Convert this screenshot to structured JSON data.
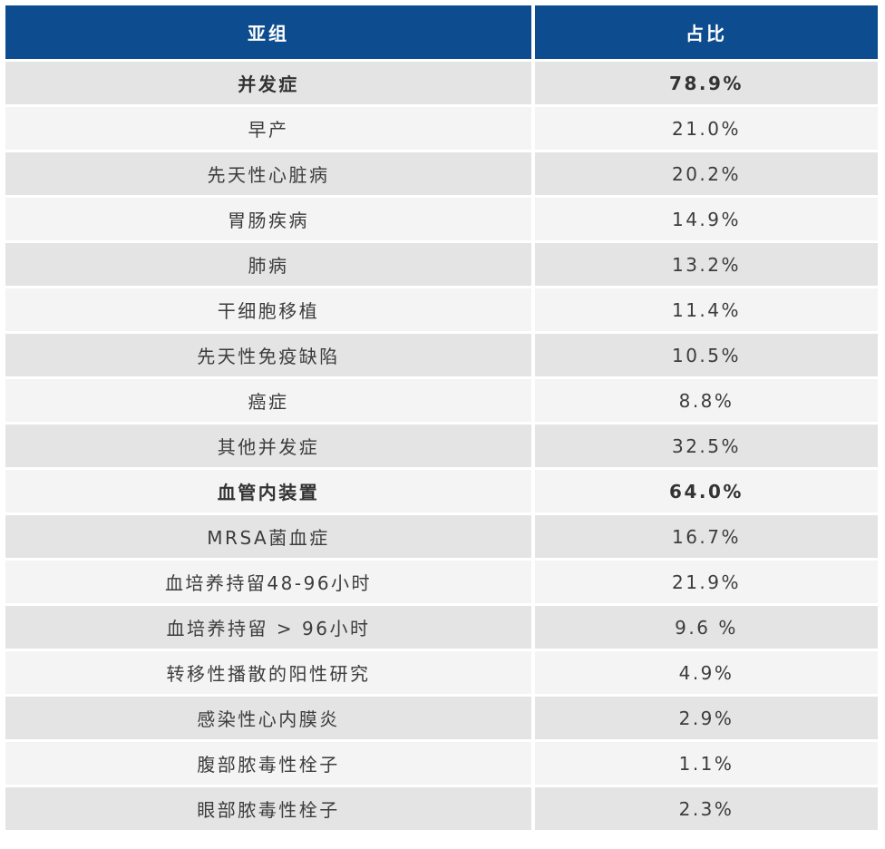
{
  "colors": {
    "header_bg": "#0d4d8f",
    "header_text": "#ffffff",
    "row_dark": "#e4e4e4",
    "row_light": "#f4f4f4",
    "body_text": "#3c3c3c"
  },
  "table": {
    "columns": [
      {
        "key": "subgroup",
        "label": "亚组"
      },
      {
        "key": "percent",
        "label": "占比"
      }
    ],
    "rows": [
      {
        "subgroup": "并发症",
        "percent": "78.9%",
        "bold": true
      },
      {
        "subgroup": "早产",
        "percent": "21.0%",
        "bold": false
      },
      {
        "subgroup": "先天性心脏病",
        "percent": "20.2%",
        "bold": false
      },
      {
        "subgroup": "胃肠疾病",
        "percent": "14.9%",
        "bold": false
      },
      {
        "subgroup": "肺病",
        "percent": "13.2%",
        "bold": false
      },
      {
        "subgroup": "干细胞移植",
        "percent": "11.4%",
        "bold": false
      },
      {
        "subgroup": "先天性免疫缺陷",
        "percent": "10.5%",
        "bold": false
      },
      {
        "subgroup": "癌症",
        "percent": "8.8%",
        "bold": false
      },
      {
        "subgroup": "其他并发症",
        "percent": "32.5%",
        "bold": false
      },
      {
        "subgroup": "血管内装置",
        "percent": "64.0%",
        "bold": true
      },
      {
        "subgroup": "MRSA菌血症",
        "percent": "16.7%",
        "bold": false
      },
      {
        "subgroup": "血培养持留48-96小时",
        "percent": "21.9%",
        "bold": false
      },
      {
        "subgroup": "血培养持留 > 96小时",
        "percent": "9.6 %",
        "bold": false
      },
      {
        "subgroup": "转移性播散的阳性研究",
        "percent": "4.9%",
        "bold": false
      },
      {
        "subgroup": "感染性心内膜炎",
        "percent": "2.9%",
        "bold": false
      },
      {
        "subgroup": "腹部脓毒性栓子",
        "percent": "1.1%",
        "bold": false
      },
      {
        "subgroup": "眼部脓毒性栓子",
        "percent": "2.3%",
        "bold": false
      }
    ]
  }
}
